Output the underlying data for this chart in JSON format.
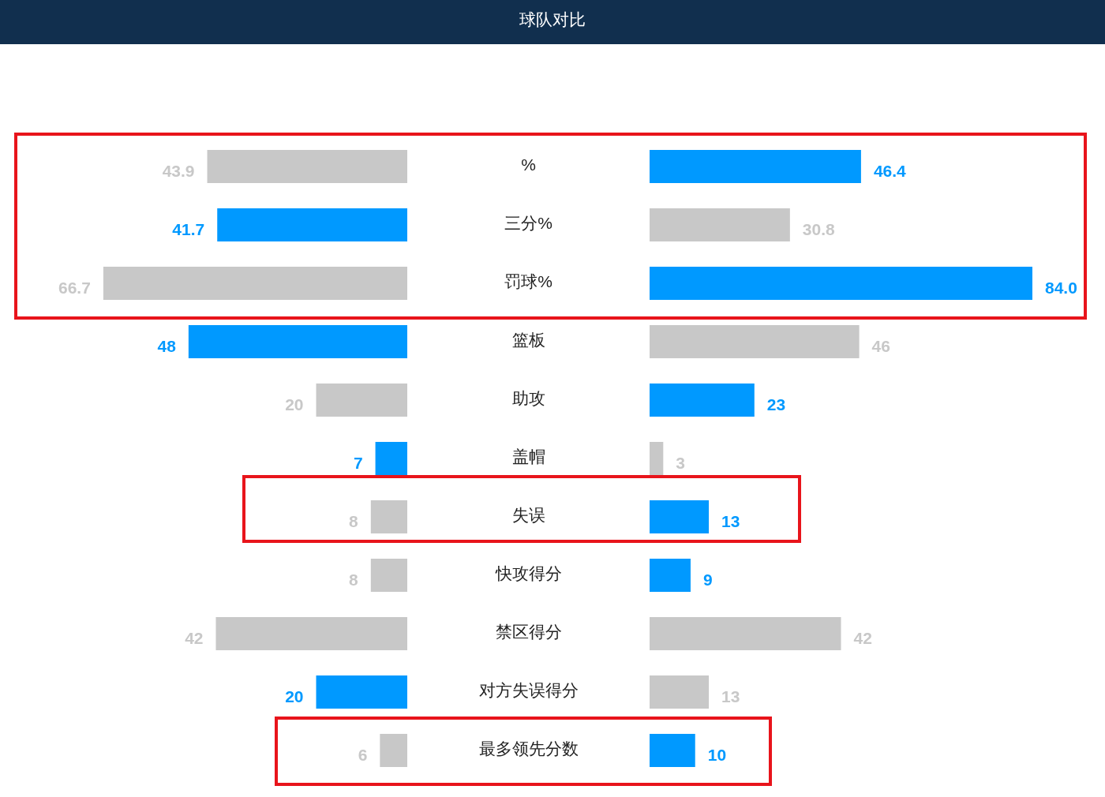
{
  "chart_data": [
    {
      "type": "bar",
      "orientation": "horizontal",
      "title": "球队对比",
      "tick_labels": "y",
      "categories": [
        "%",
        "三分%",
        "罚球%",
        "篮板",
        "助攻",
        "盖帽",
        "失误",
        "快攻得分",
        "禁区得分",
        "对方失误得分",
        "最多领先分数"
      ],
      "values": [
        43.9,
        41.7,
        66.7,
        48,
        20,
        7,
        8,
        8,
        42,
        20,
        6
      ],
      "value_labels": [
        "43.9",
        "41.7",
        "66.7",
        "48",
        "20",
        "7",
        "8",
        "8",
        "42",
        "20",
        "6"
      ],
      "colors": [
        "#c8c8c8",
        "#0099ff",
        "#c8c8c8",
        "#0099ff",
        "#c8c8c8",
        "#0099ff",
        "#c8c8c8",
        "#c8c8c8",
        "#c8c8c8",
        "#0099ff",
        "#c8c8c8"
      ]
    },
    {
      "type": "bar",
      "orientation": "horizontal",
      "tick_labels": false,
      "categories": [
        null,
        null,
        null,
        null,
        null,
        null,
        null,
        null,
        null,
        null,
        null
      ],
      "values": [
        46.4,
        30.8,
        84.0,
        46,
        23,
        3,
        13,
        9,
        42,
        13,
        10
      ],
      "value_labels": [
        "46.4",
        "30.8",
        "84.0",
        "46",
        "23",
        "3",
        "13",
        "9",
        "42",
        "13",
        "10"
      ],
      "colors": [
        "#0099ff",
        "#c8c8c8",
        "#0099ff",
        "#c8c8c8",
        "#0099ff",
        "#c8c8c8",
        "#0099ff",
        "#0099ff",
        "#c8c8c8",
        "#c8c8c8",
        "#0099ff"
      ]
    }
  ]
}
